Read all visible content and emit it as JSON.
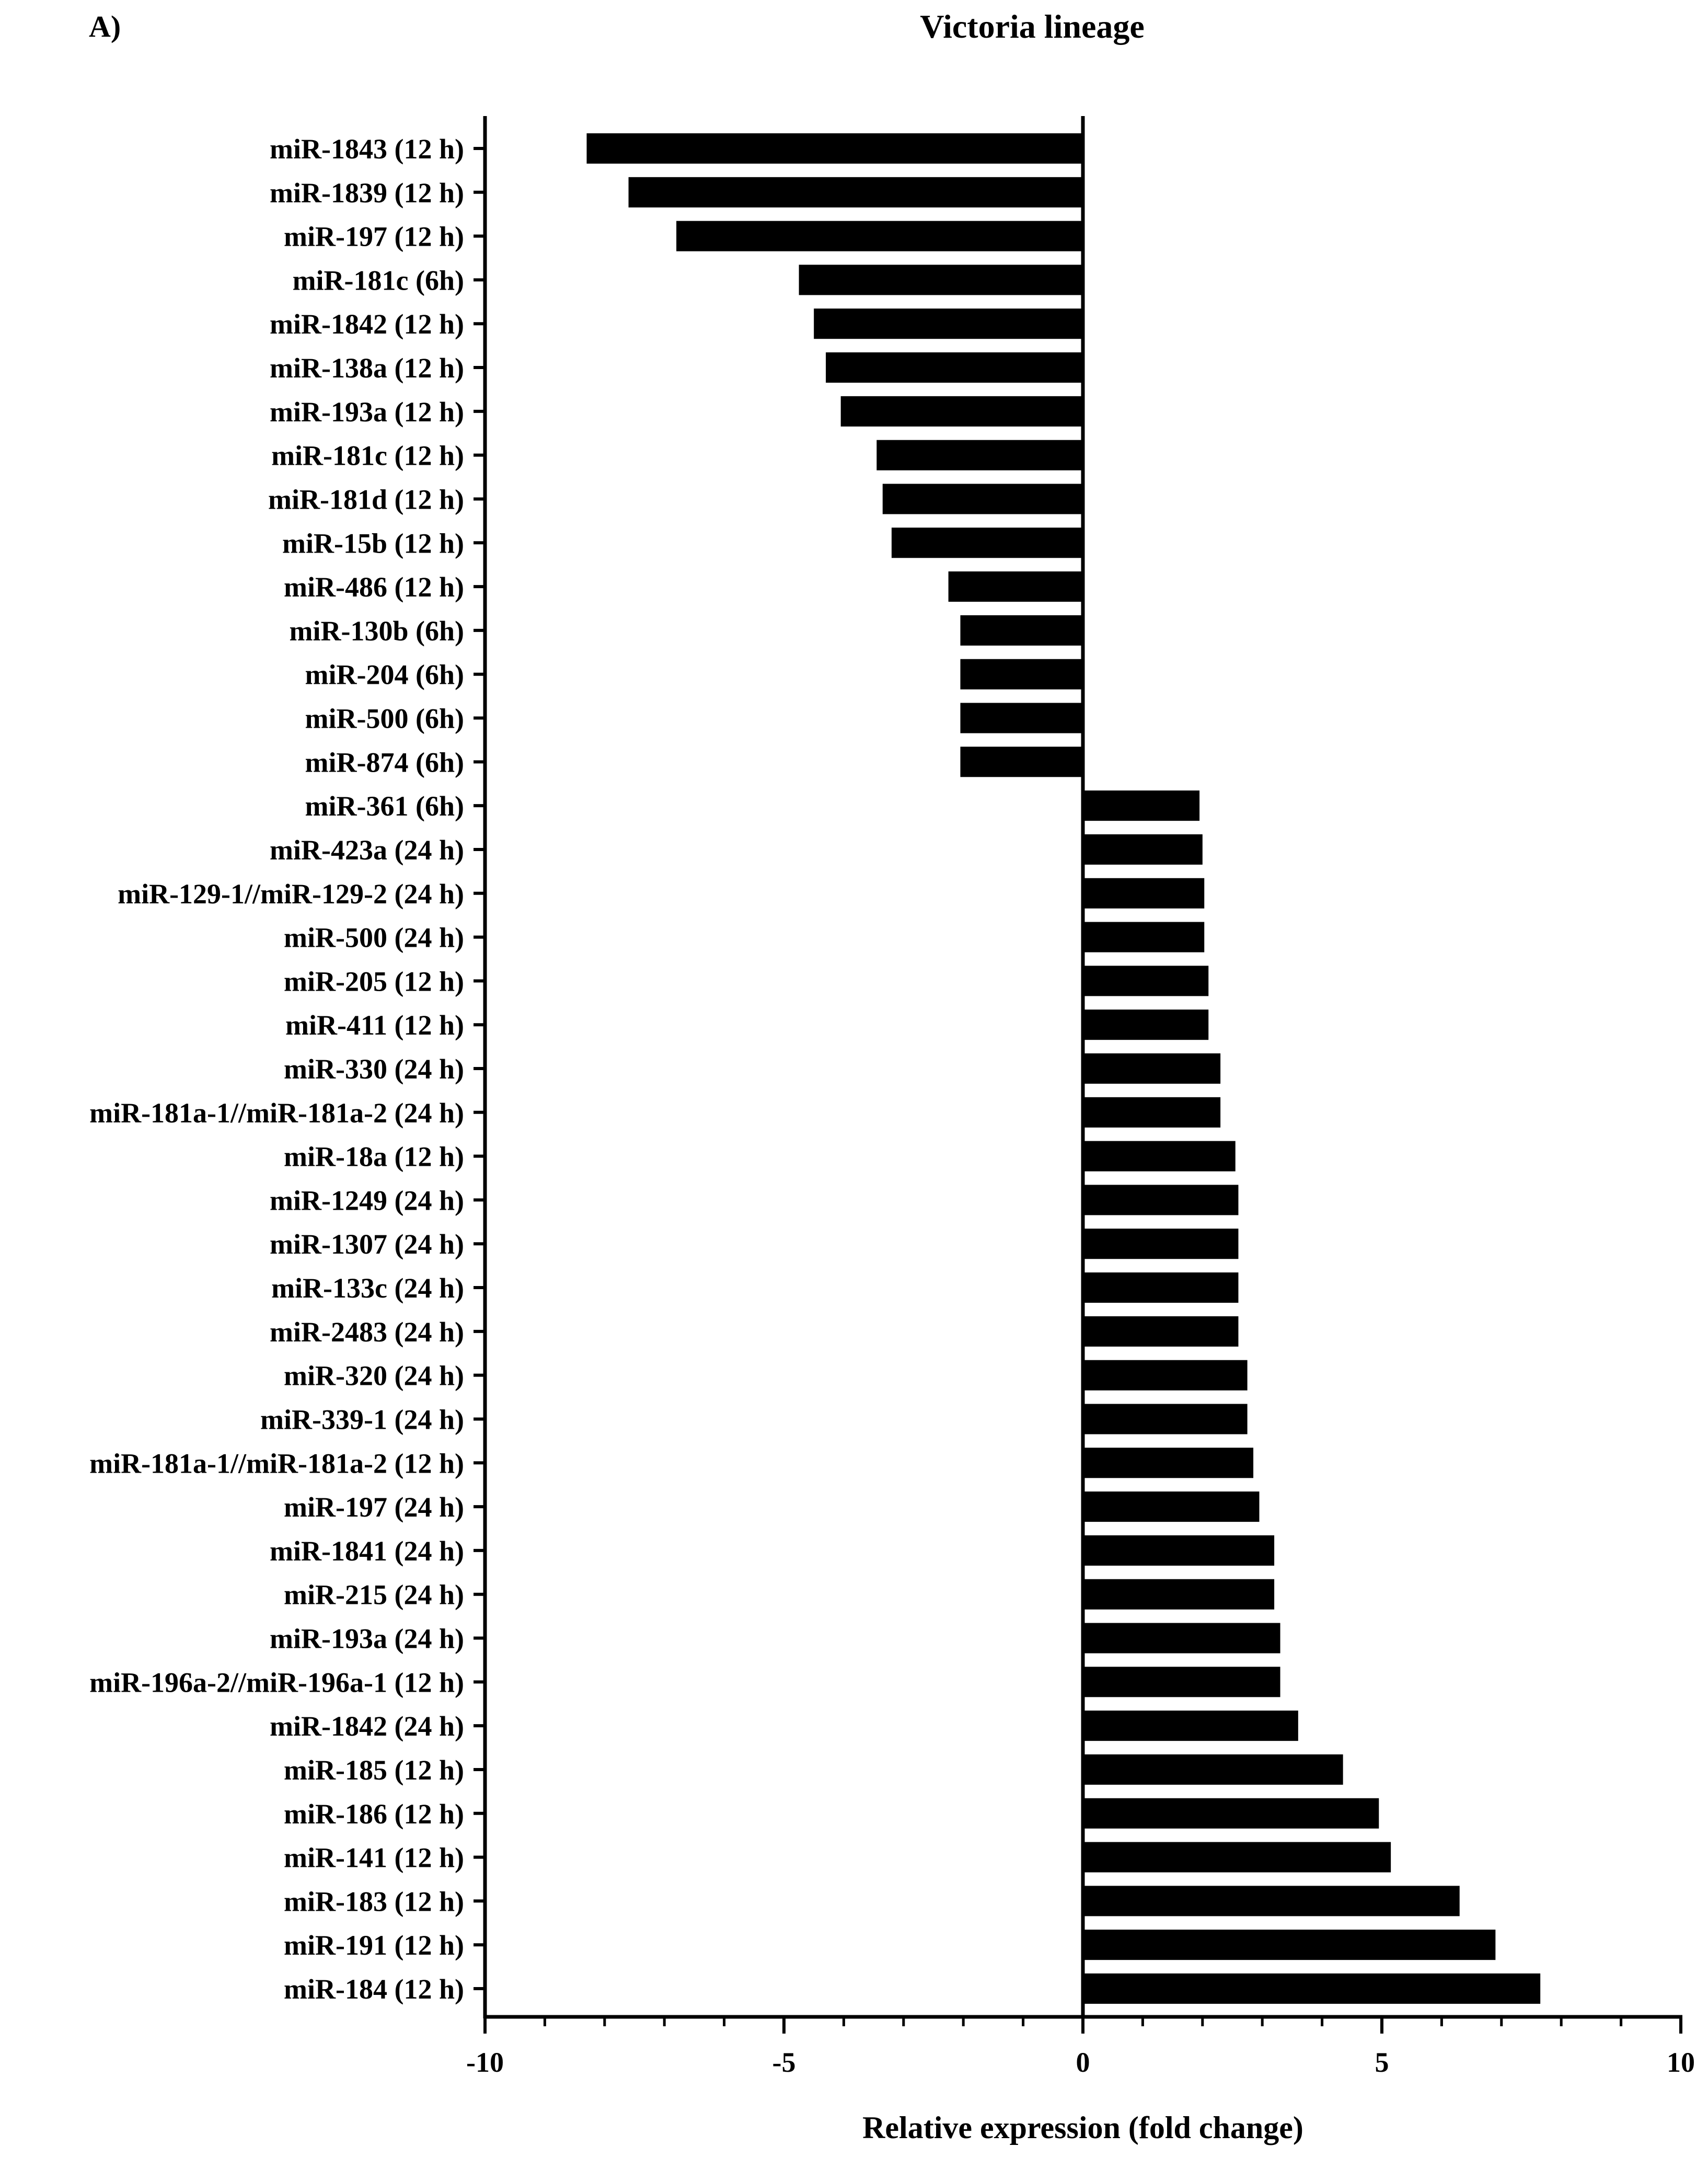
{
  "panel_label": "A)",
  "chart_data": {
    "type": "bar",
    "orientation": "horizontal",
    "title": "Victoria lineage",
    "xlabel": "Relative expression (fold change)",
    "ylabel": "",
    "xlim": [
      -10,
      10
    ],
    "x_ticks": [
      -10,
      -5,
      0,
      5,
      10
    ],
    "x_tick_labels": [
      "-10",
      "-5",
      "0",
      "5",
      "10"
    ],
    "minor_tick_step": 1,
    "bar_color": "#000000",
    "grid": false,
    "legend": "none",
    "categories": [
      "miR-1843 (12 h)",
      "miR-1839 (12 h)",
      "miR-197 (12 h)",
      "miR-181c (6h)",
      "miR-1842 (12 h)",
      "miR-138a (12 h)",
      "miR-193a (12 h)",
      "miR-181c (12 h)",
      "miR-181d (12 h)",
      "miR-15b (12 h)",
      "miR-486 (12 h)",
      "miR-130b (6h)",
      "miR-204 (6h)",
      "miR-500 (6h)",
      "miR-874 (6h)",
      "miR-361 (6h)",
      "miR-423a (24 h)",
      "miR-129-1//miR-129-2 (24 h)",
      "miR-500 (24 h)",
      "miR-205 (12 h)",
      "miR-411 (12 h)",
      "miR-330 (24 h)",
      "miR-181a-1//miR-181a-2 (24 h)",
      "miR-18a (12 h)",
      "miR-1249 (24 h)",
      "miR-1307 (24 h)",
      "miR-133c (24 h)",
      "miR-2483 (24 h)",
      "miR-320 (24 h)",
      "miR-339-1 (24 h)",
      "miR-181a-1//miR-181a-2 (12 h)",
      "miR-197 (24 h)",
      "miR-1841 (24 h)",
      "miR-215 (24 h)",
      "miR-193a (24 h)",
      "miR-196a-2//miR-196a-1 (12 h)",
      "miR-1842 (24 h)",
      "miR-185 (12 h)",
      "miR-186 (12 h)",
      "miR-141 (12 h)",
      "miR-183 (12 h)",
      "miR-191 (12 h)",
      "miR-184 (12 h)"
    ],
    "values": [
      -8.3,
      -7.6,
      -6.8,
      -4.75,
      -4.5,
      -4.3,
      -4.05,
      -3.45,
      -3.35,
      -3.2,
      -2.25,
      -2.05,
      -2.05,
      -2.05,
      -2.05,
      1.95,
      2.0,
      2.03,
      2.03,
      2.1,
      2.1,
      2.3,
      2.3,
      2.55,
      2.6,
      2.6,
      2.6,
      2.6,
      2.75,
      2.75,
      2.85,
      2.95,
      3.2,
      3.2,
      3.3,
      3.3,
      3.6,
      4.35,
      4.95,
      5.15,
      6.3,
      6.9,
      7.65
    ]
  }
}
